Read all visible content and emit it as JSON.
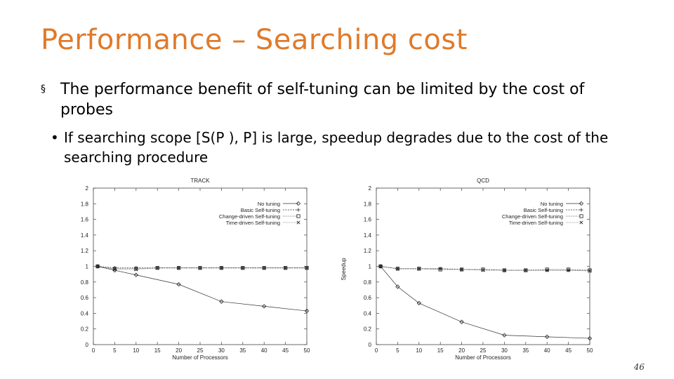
{
  "slide": {
    "title": "Performance – Searching cost",
    "bullet1_marker": "§",
    "bullet1": "The performance benefit of self-tuning can be limited by the cost of probes",
    "bullet2_marker": "•",
    "bullet2": "If searching scope [S(P ), P] is large, speedup degrades due to the cost of the searching procedure",
    "page_number": "46"
  },
  "chart_data": [
    {
      "type": "line",
      "title": "TRACK",
      "xlabel": "Number of Processors",
      "ylabel": "",
      "x_ticks": [
        0,
        5,
        10,
        15,
        20,
        25,
        30,
        35,
        40,
        45,
        50
      ],
      "y_ticks": [
        "0",
        "0.2",
        "0.4",
        "0.6",
        "0.8",
        "1",
        "1.2",
        "1.4",
        "1.6",
        "1.8",
        "2"
      ],
      "xlim": [
        0,
        50
      ],
      "ylim": [
        0,
        2
      ],
      "grid": false,
      "legend_position": "top-right",
      "series": [
        {
          "name": "No tuning",
          "marker": "diamond",
          "x": [
            1,
            5,
            10,
            20,
            30,
            40,
            50
          ],
          "y": [
            1,
            0.95,
            0.89,
            0.77,
            0.55,
            0.49,
            0.43
          ]
        },
        {
          "name": "Basic Self-tuning",
          "marker": "plus",
          "x": [
            1,
            5,
            10,
            15,
            20,
            25,
            30,
            35,
            40,
            45,
            50
          ],
          "y": [
            1,
            0.98,
            0.98,
            0.98,
            0.98,
            0.98,
            0.98,
            0.98,
            0.98,
            0.98,
            0.98
          ]
        },
        {
          "name": "Change-driven Self-tuning",
          "marker": "square",
          "x": [
            1,
            5,
            10,
            15,
            20,
            25,
            30,
            35,
            40,
            45,
            50
          ],
          "y": [
            1,
            0.97,
            0.97,
            0.98,
            0.98,
            0.98,
            0.98,
            0.98,
            0.98,
            0.98,
            0.98
          ]
        },
        {
          "name": "Time-driven Self-tuning",
          "marker": "cross",
          "x": [
            1,
            5,
            10,
            15,
            20,
            25,
            30,
            35,
            40,
            45,
            50
          ],
          "y": [
            1,
            0.96,
            0.96,
            0.98,
            0.98,
            0.98,
            0.98,
            0.98,
            0.98,
            0.98,
            0.98
          ]
        }
      ]
    },
    {
      "type": "line",
      "title": "QCD",
      "xlabel": "Number of Processors",
      "ylabel": "Speedup",
      "x_ticks": [
        0,
        5,
        10,
        15,
        20,
        25,
        30,
        35,
        40,
        45,
        50
      ],
      "y_ticks": [
        "0",
        "0.2",
        "0.4",
        "0.6",
        "0.8",
        "1",
        "1.2",
        "1.4",
        "1.6",
        "1.8",
        "2"
      ],
      "xlim": [
        0,
        50
      ],
      "ylim": [
        0,
        2
      ],
      "grid": false,
      "legend_position": "top-right",
      "series": [
        {
          "name": "No tuning",
          "marker": "diamond",
          "x": [
            1,
            5,
            10,
            20,
            30,
            40,
            50
          ],
          "y": [
            1,
            0.74,
            0.53,
            0.29,
            0.12,
            0.1,
            0.08
          ]
        },
        {
          "name": "Basic Self-tuning",
          "marker": "plus",
          "x": [
            1,
            5,
            10,
            15,
            20,
            25,
            30,
            35,
            40,
            45,
            50
          ],
          "y": [
            1,
            0.97,
            0.97,
            0.97,
            0.96,
            0.96,
            0.95,
            0.95,
            0.95,
            0.95,
            0.95
          ]
        },
        {
          "name": "Change-driven Self-tuning",
          "marker": "square",
          "x": [
            1,
            5,
            10,
            15,
            20,
            25,
            30,
            35,
            40,
            45,
            50
          ],
          "y": [
            1,
            0.97,
            0.97,
            0.96,
            0.96,
            0.96,
            0.95,
            0.95,
            0.96,
            0.96,
            0.95
          ]
        },
        {
          "name": "Time-driven Self-tuning",
          "marker": "cross",
          "x": [
            1,
            5,
            10,
            15,
            20,
            25,
            30,
            35,
            40,
            45,
            50
          ],
          "y": [
            1,
            0.97,
            0.97,
            0.97,
            0.96,
            0.95,
            0.95,
            0.95,
            0.95,
            0.95,
            0.94
          ]
        }
      ]
    }
  ]
}
